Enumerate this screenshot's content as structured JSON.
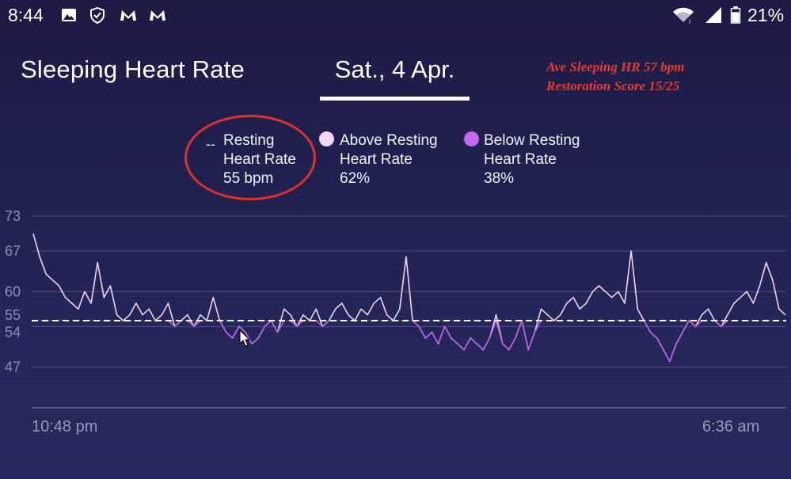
{
  "status_bar": {
    "time": "8:44",
    "battery_percent": "21%",
    "left_icons": [
      "gallery-icon",
      "shield-check-icon",
      "malwarebytes-icon",
      "malwarebytes-icon"
    ],
    "right_icons": [
      "wifi-icon",
      "signal-icon",
      "battery-icon"
    ]
  },
  "header": {
    "title": "Sleeping Heart Rate",
    "date": "Sat., 4 Apr."
  },
  "notes": {
    "line1": "Ave Sleeping HR 57 bpm",
    "line2": "Restoration Score 15/25"
  },
  "legend": {
    "resting": {
      "marker": "--",
      "line1": "Resting",
      "line2": "Heart Rate",
      "value": "55 bpm"
    },
    "above": {
      "line1": "Above Resting",
      "line2": "Heart Rate",
      "value": "62%",
      "color": "#f2d6f2"
    },
    "below": {
      "line1": "Below Resting",
      "line2": "Heart Rate",
      "value": "38%",
      "color": "#c468f0"
    }
  },
  "colors": {
    "above_line": "#f2d6f2",
    "below_line": "#b65ce8",
    "resting_line": "#ffffff",
    "annotation_red": "#e8392f"
  },
  "chart_data": {
    "type": "line",
    "y_ticks": [
      "73",
      "67",
      "60",
      "55",
      "54",
      "47"
    ],
    "ylim": [
      40,
      73
    ],
    "resting_hr": 55,
    "x_labels": {
      "start": "10:48 pm",
      "end": "6:36 am"
    },
    "x": [
      0,
      4,
      8,
      12,
      16,
      20,
      24,
      28,
      32,
      36,
      40,
      44,
      48,
      52,
      56,
      60,
      64,
      68,
      72,
      76,
      80,
      84,
      88,
      92,
      96,
      100,
      104,
      108,
      112,
      116,
      120,
      124,
      128,
      132,
      136,
      140,
      144,
      148,
      152,
      156,
      160,
      164,
      168,
      172,
      176,
      180,
      184,
      188,
      192,
      196,
      200,
      204,
      208,
      212,
      216,
      220,
      224,
      228,
      232,
      236,
      240,
      244,
      248,
      252,
      256,
      260,
      264,
      268,
      272,
      276,
      280,
      284,
      288,
      292,
      296,
      300,
      304,
      308,
      312,
      316,
      320,
      324,
      328,
      332,
      336,
      340,
      344,
      348,
      352,
      356,
      360,
      364,
      368,
      372,
      376,
      380,
      384,
      388,
      392,
      396,
      400,
      404,
      408,
      412,
      416,
      420,
      424,
      428,
      432,
      436,
      440,
      444,
      448,
      452,
      456,
      460,
      464,
      468
    ],
    "values": [
      70,
      66,
      63,
      62,
      61,
      59,
      58,
      57,
      60,
      58,
      65,
      59,
      61,
      56,
      55,
      56,
      58,
      56,
      57,
      55,
      56,
      58,
      54,
      55,
      56,
      54,
      56,
      55,
      59,
      55,
      53,
      52,
      54,
      53,
      51,
      52,
      54,
      55,
      53,
      57,
      56,
      54,
      56,
      55,
      57,
      54,
      55,
      57,
      58,
      56,
      55,
      57,
      56,
      58,
      59,
      56,
      55,
      57,
      66,
      55,
      54,
      52,
      53,
      51,
      54,
      52,
      51,
      50,
      52,
      51,
      50,
      52,
      56,
      51,
      50,
      52,
      55,
      50,
      53,
      57,
      56,
      55,
      56,
      58,
      59,
      57,
      58,
      60,
      61,
      60,
      59,
      60,
      58,
      67,
      57,
      55,
      53,
      52,
      50,
      48,
      51,
      53,
      55,
      54,
      56,
      57,
      55,
      54,
      56,
      58,
      59,
      60,
      58,
      61,
      65,
      62,
      57,
      56
    ]
  }
}
